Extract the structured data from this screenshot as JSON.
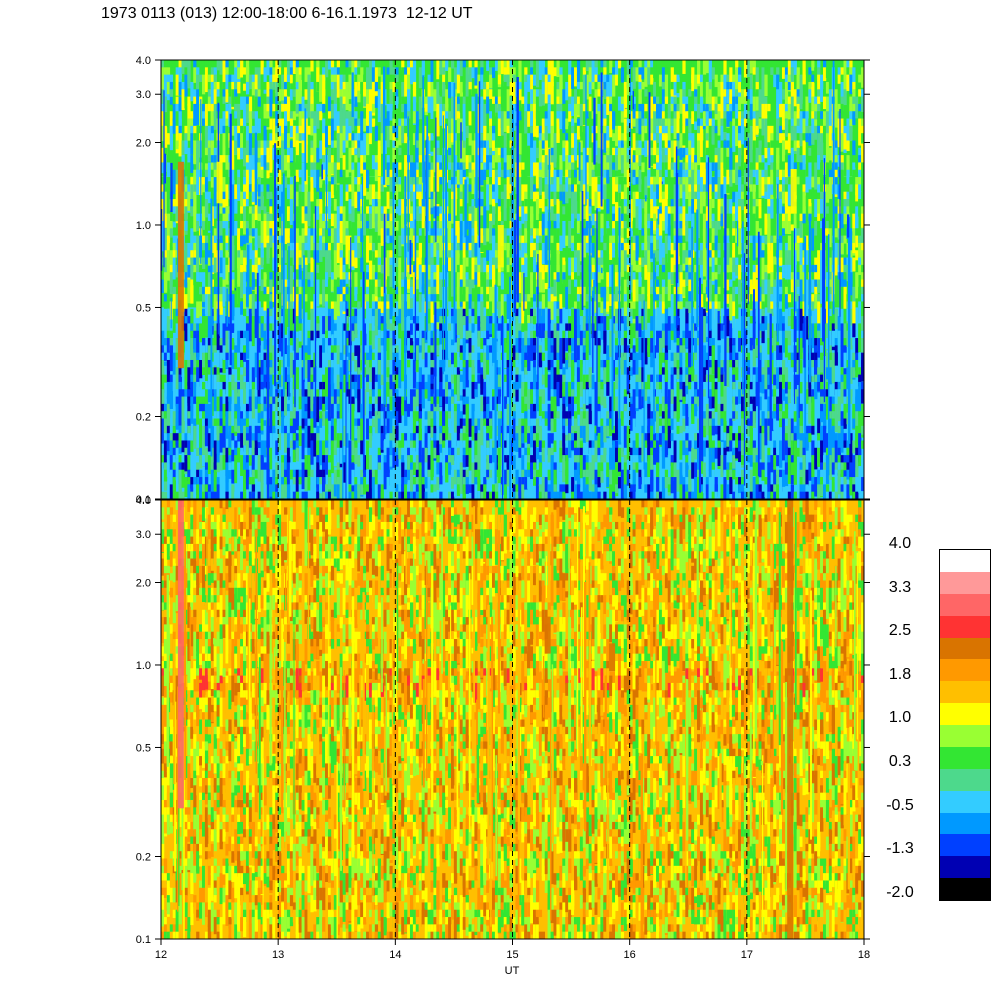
{
  "title": "1973 0113 (013) 12:00-18:00 6-16.1.1973  12-12 UT",
  "chart_data": [
    {
      "type": "heatmap",
      "panel": "upper",
      "x_range": [
        12,
        18
      ],
      "y_range": [
        0.1,
        4.0
      ],
      "y_scale": "log",
      "y_ticks": [
        "0.1",
        "0.2",
        "0.5",
        "1.0",
        "2.0",
        "3.0",
        "4.0"
      ],
      "y_tick_values": [
        0.1,
        0.2,
        0.5,
        1.0,
        2.0,
        3.0,
        4.0
      ],
      "dominant_levels": [
        {
          "y_min": 0.1,
          "y_max": 0.5,
          "level": -0.5
        },
        {
          "y_min": 0.5,
          "y_max": 1.5,
          "level": 0.3
        },
        {
          "y_min": 1.5,
          "y_max": 4.0,
          "level": 0.3
        }
      ],
      "features": [
        {
          "x": 12.17,
          "y_min": 0.3,
          "y_max": 1.7,
          "level": 2.5
        },
        {
          "x": 12.5,
          "y_min": 1.2,
          "y_max": 1.7,
          "level": 1.0
        },
        {
          "x": 14.9,
          "y_min": 0.7,
          "y_max": 1.0,
          "level": 1.0
        },
        {
          "x": 17.4,
          "y_min": 1.1,
          "y_max": 1.6,
          "level": 1.0
        }
      ],
      "dashed_verticals": [
        13,
        14,
        15,
        16,
        17
      ]
    },
    {
      "type": "heatmap",
      "panel": "lower",
      "x_range": [
        12,
        18
      ],
      "y_range": [
        0.1,
        4.0
      ],
      "y_scale": "log",
      "y_ticks": [
        "0.1",
        "0.2",
        "0.5",
        "1.0",
        "2.0",
        "3.0",
        "4.0"
      ],
      "y_tick_values": [
        0.1,
        0.2,
        0.5,
        1.0,
        2.0,
        3.0,
        4.0
      ],
      "dominant_levels": [
        {
          "y_min": 0.1,
          "y_max": 0.8,
          "level": 1.4
        },
        {
          "y_min": 0.8,
          "y_max": 0.95,
          "level": 1.8
        },
        {
          "y_min": 0.95,
          "y_max": 4.0,
          "level": 1.4
        }
      ],
      "features": [
        {
          "x": 12.17,
          "y_min": 0.3,
          "y_max": 4.0,
          "level": 3.3
        },
        {
          "x": 15.3,
          "y_min": 1.1,
          "y_max": 1.5,
          "level": 2.5
        },
        {
          "x": 15.85,
          "y_min": 0.95,
          "y_max": 1.2,
          "level": 2.5
        },
        {
          "x": 17.37,
          "y_min": 0.1,
          "y_max": 4.0,
          "level": 2.5
        }
      ],
      "dashed_verticals": [
        13,
        14,
        15,
        16,
        17
      ]
    }
  ],
  "x_axis": {
    "label": "UT",
    "ticks": [
      "12",
      "13",
      "14",
      "15",
      "16",
      "17",
      "18"
    ],
    "tick_values": [
      12,
      13,
      14,
      15,
      16,
      17,
      18
    ]
  },
  "colorbar": {
    "labels": [
      "4.0",
      "3.3",
      "2.5",
      "1.8",
      "1.0",
      "0.3",
      "-0.5",
      "-1.3",
      "-2.0"
    ],
    "colors": [
      "#ffffff",
      "#ff9999",
      "#ff6666",
      "#ff3333",
      "#d97400",
      "#ff9900",
      "#ffbf00",
      "#ffff00",
      "#99ff33",
      "#33e633",
      "#4dd98c",
      "#33ccff",
      "#0099ff",
      "#0040ff",
      "#0000b3",
      "#000000"
    ]
  }
}
